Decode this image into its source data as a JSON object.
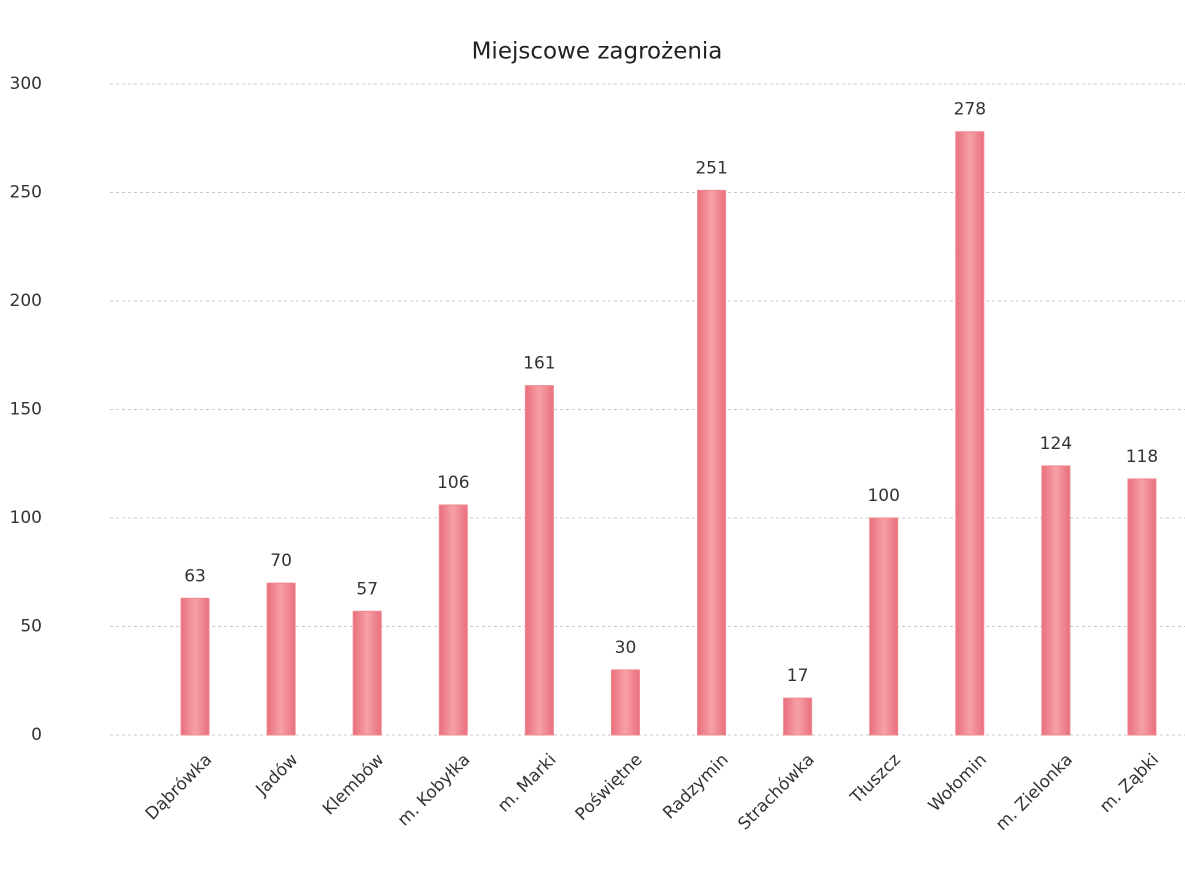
{
  "chart_data": {
    "type": "bar",
    "title": "Miejscowe zagrożenia",
    "categories": [
      "Dąbrówka",
      "Jadów",
      "Klembów",
      "m. Kobyłka",
      "m. Marki",
      "Poświętne",
      "Radzymin",
      "Strachówka",
      "Tłuszcz",
      "Wołomin",
      "m. Zielonka",
      "m. Ząbki"
    ],
    "values": [
      63,
      70,
      57,
      106,
      161,
      30,
      251,
      17,
      100,
      278,
      124,
      118
    ],
    "color": "#f08890",
    "ylim": [
      0,
      300
    ],
    "yticks": [
      0,
      50,
      100,
      150,
      200,
      250,
      300
    ],
    "grid": true
  }
}
